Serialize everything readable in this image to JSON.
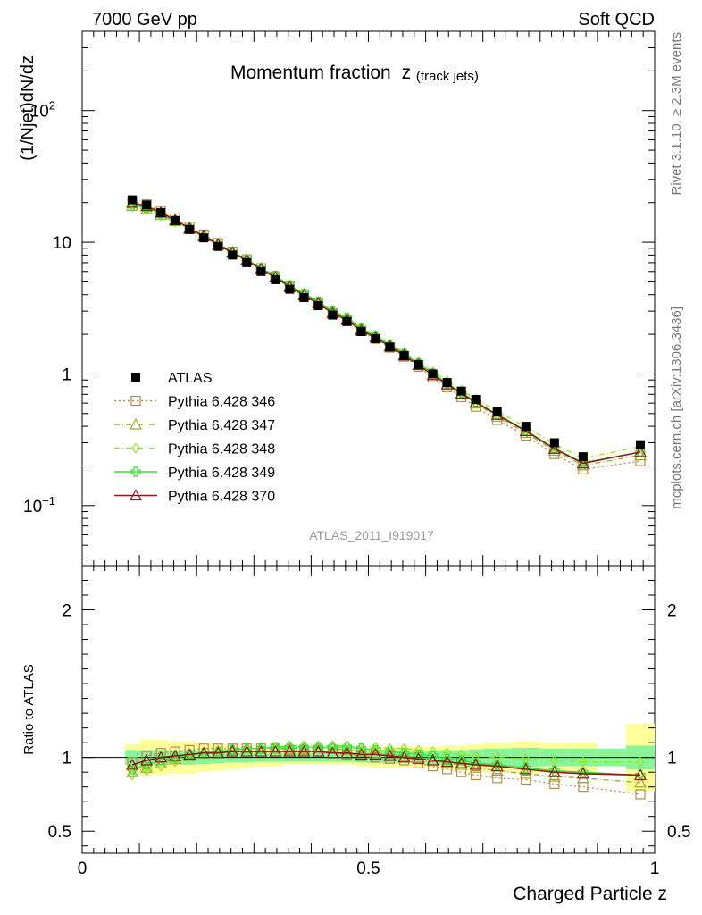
{
  "header": {
    "left": "7000 GeV pp",
    "right": "Soft QCD",
    "side_top": "Rivet 3.1.10, ≥ 2.3M events",
    "side_bottom": "mcplots.cern.ch [arXiv:1306.3436]"
  },
  "chart_data": {
    "type": "line",
    "title": "Momentum fraction",
    "title_symbol": "z",
    "title_sub": "(track jets)",
    "watermark": "ATLAS_2011_I919017",
    "xlabel": "Charged Particle z",
    "ylabel_main": "(1/Njet)dN/dz",
    "ylabel_ratio": "Ratio to ATLAS",
    "xlim": [
      0,
      1
    ],
    "ylim_main": [
      0.035,
      400
    ],
    "ylim_ratio": [
      0.35,
      2.3
    ],
    "y_scale_main": "log",
    "x_ticks": [
      {
        "value": 0,
        "label": "0"
      },
      {
        "value": 0.5,
        "label": "0.5"
      },
      {
        "value": 1,
        "label": "1"
      }
    ],
    "y_ticks_main": [
      {
        "value": 0.1,
        "label": "10",
        "exp": "−1"
      },
      {
        "value": 1,
        "label": "1",
        "exp": ""
      },
      {
        "value": 10,
        "label": "10",
        "exp": ""
      },
      {
        "value": 100,
        "label": "10",
        "exp": "2"
      }
    ],
    "y_ticks_ratio": [
      {
        "value": 0.5,
        "label": "0.5"
      },
      {
        "value": 1,
        "label": "1"
      },
      {
        "value": 2,
        "label": "2"
      }
    ],
    "legend_placement": "bottom-left",
    "x": [
      0.0875,
      0.1125,
      0.1375,
      0.1625,
      0.1875,
      0.2125,
      0.2375,
      0.2625,
      0.2875,
      0.3125,
      0.3375,
      0.3625,
      0.3875,
      0.4125,
      0.4375,
      0.4625,
      0.4875,
      0.5125,
      0.5375,
      0.5625,
      0.5875,
      0.6125,
      0.6375,
      0.6625,
      0.6875,
      0.725,
      0.775,
      0.825,
      0.875,
      0.975
    ],
    "bin_edges": [
      0.075,
      0.1,
      0.125,
      0.15,
      0.175,
      0.2,
      0.225,
      0.25,
      0.275,
      0.3,
      0.325,
      0.35,
      0.375,
      0.4,
      0.425,
      0.45,
      0.475,
      0.5,
      0.525,
      0.55,
      0.575,
      0.6,
      0.625,
      0.65,
      0.675,
      0.7,
      0.75,
      0.8,
      0.85,
      0.9,
      0.95,
      1.0
    ],
    "data": {
      "name": "ATLAS",
      "values": [
        21,
        19.2,
        16.8,
        14.6,
        12.5,
        10.8,
        9.3,
        8.0,
        7.0,
        6.0,
        5.2,
        4.4,
        3.8,
        3.3,
        2.8,
        2.5,
        2.1,
        1.85,
        1.6,
        1.38,
        1.18,
        1.0,
        0.86,
        0.74,
        0.64,
        0.52,
        0.4,
        0.3,
        0.235,
        0.29
      ]
    },
    "ratio_bands": {
      "green_half_width": [
        0.05,
        0.05,
        0.05,
        0.05,
        0.05,
        0.045,
        0.04,
        0.035,
        0.035,
        0.03,
        0.03,
        0.03,
        0.03,
        0.03,
        0.03,
        0.03,
        0.035,
        0.04,
        0.04,
        0.04,
        0.04,
        0.045,
        0.05,
        0.05,
        0.055,
        0.06,
        0.065,
        0.06,
        0.06,
        0.06,
        0.08
      ],
      "yellow_half_width": [
        0.09,
        0.12,
        0.12,
        0.11,
        0.11,
        0.1,
        0.09,
        0.08,
        0.07,
        0.06,
        0.06,
        0.05,
        0.05,
        0.05,
        0.05,
        0.05,
        0.06,
        0.07,
        0.07,
        0.07,
        0.07,
        0.07,
        0.08,
        0.08,
        0.09,
        0.1,
        0.11,
        0.1,
        0.1,
        0.0,
        0.23
      ]
    },
    "series": [
      {
        "name": "Pythia 6.428 346",
        "color": "#b78a4a",
        "dash": "2,3",
        "marker": "square",
        "ratio": [
          0.97,
          1.01,
          1.03,
          1.04,
          1.05,
          1.06,
          1.06,
          1.06,
          1.06,
          1.06,
          1.06,
          1.05,
          1.05,
          1.04,
          1.03,
          1.02,
          1.01,
          1.0,
          0.99,
          0.98,
          0.96,
          0.94,
          0.92,
          0.9,
          0.88,
          0.86,
          0.85,
          0.82,
          0.8,
          0.75
        ]
      },
      {
        "name": "Pythia 6.428 347",
        "color": "#9aaa2c",
        "dash": "6,3,1,3",
        "marker": "triangle",
        "ratio": [
          0.9,
          0.93,
          0.96,
          0.99,
          1.01,
          1.03,
          1.04,
          1.05,
          1.06,
          1.06,
          1.06,
          1.06,
          1.06,
          1.06,
          1.06,
          1.05,
          1.04,
          1.03,
          1.02,
          1.01,
          1.0,
          0.98,
          0.96,
          0.95,
          0.93,
          0.91,
          0.89,
          0.87,
          0.86,
          0.83
        ]
      },
      {
        "name": "Pythia 6.428 348",
        "color": "#99e02a",
        "dash": "6,3,1,3",
        "marker": "diamond",
        "ratio": [
          0.88,
          0.91,
          0.94,
          0.97,
          1.0,
          1.02,
          1.04,
          1.05,
          1.06,
          1.07,
          1.07,
          1.08,
          1.08,
          1.08,
          1.08,
          1.08,
          1.07,
          1.07,
          1.06,
          1.06,
          1.05,
          1.04,
          1.03,
          1.02,
          1.01,
          1.0,
          0.99,
          0.98,
          0.97,
          0.97
        ]
      },
      {
        "name": "Pythia 6.428 349",
        "color": "#33e033",
        "dash": "",
        "marker": "cross",
        "ratio": [
          0.92,
          0.95,
          0.98,
          1.0,
          1.02,
          1.03,
          1.04,
          1.05,
          1.06,
          1.06,
          1.07,
          1.07,
          1.07,
          1.07,
          1.07,
          1.07,
          1.06,
          1.05,
          1.04,
          1.03,
          1.02,
          1.01,
          0.99,
          0.98,
          0.96,
          0.95,
          0.93,
          0.91,
          0.9,
          0.88
        ]
      },
      {
        "name": "Pythia 6.428 370",
        "color": "#8b1a1a",
        "dash": "",
        "marker": "triangle",
        "ratio": [
          0.95,
          0.98,
          1.0,
          1.01,
          1.02,
          1.03,
          1.03,
          1.04,
          1.04,
          1.04,
          1.04,
          1.04,
          1.04,
          1.04,
          1.03,
          1.03,
          1.02,
          1.02,
          1.01,
          1.0,
          0.99,
          0.98,
          0.97,
          0.96,
          0.95,
          0.94,
          0.92,
          0.9,
          0.89,
          0.88
        ]
      }
    ]
  }
}
